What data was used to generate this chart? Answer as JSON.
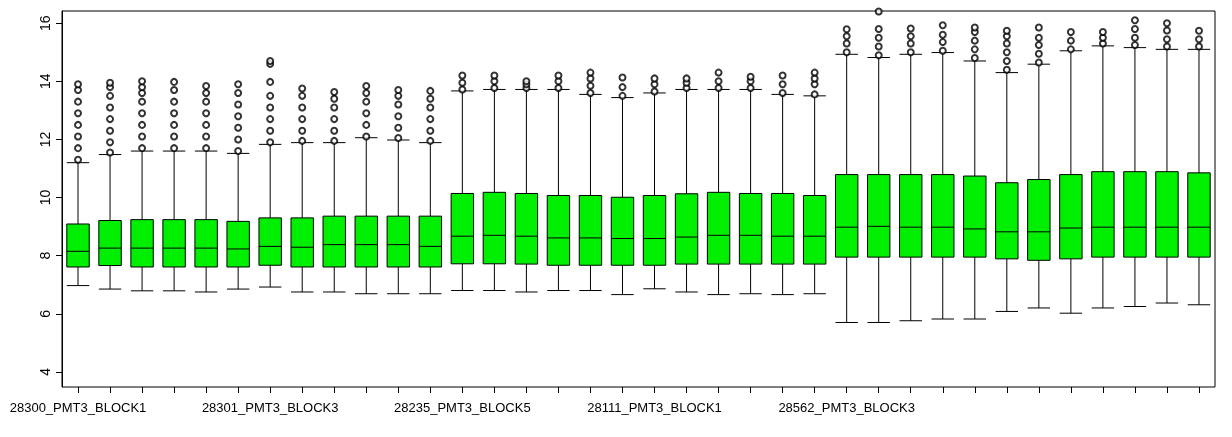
{
  "chart_data": {
    "type": "box",
    "color": "#00ee00",
    "categories": [
      "28300_PMT3_BLOCK1",
      null,
      null,
      null,
      null,
      null,
      "28301_PMT3_BLOCK3",
      null,
      null,
      null,
      null,
      null,
      "28235_PMT3_BLOCK5",
      null,
      null,
      null,
      null,
      null,
      "28111_PMT3_BLOCK1",
      null,
      null,
      null,
      null,
      null,
      "28562_PMT3_BLOCK3",
      null,
      null,
      null,
      null,
      null,
      null,
      null,
      null,
      null,
      null,
      null
    ],
    "ylim": [
      3.48,
      16.42
    ],
    "yticks": [
      4,
      6,
      8,
      10,
      12,
      14,
      16
    ],
    "boxes": [
      {
        "low": 6.97,
        "q1": 7.61,
        "median": 8.15,
        "q3": 9.09,
        "high": 11.2,
        "outliers": [
          11.3,
          11.7,
          12.1,
          12.5,
          12.9,
          13.3,
          13.7,
          13.9
        ]
      },
      {
        "low": 6.85,
        "q1": 7.66,
        "median": 8.26,
        "q3": 9.21,
        "high": 11.48,
        "outliers": [
          11.55,
          11.9,
          12.3,
          12.7,
          13.1,
          13.5,
          13.8,
          13.95
        ]
      },
      {
        "low": 6.79,
        "q1": 7.61,
        "median": 8.26,
        "q3": 9.24,
        "high": 11.6,
        "outliers": [
          11.7,
          12.1,
          12.5,
          12.9,
          13.3,
          13.6,
          13.8,
          14.0
        ]
      },
      {
        "low": 6.79,
        "q1": 7.61,
        "median": 8.26,
        "q3": 9.24,
        "high": 11.6,
        "outliers": [
          11.7,
          12.1,
          12.5,
          12.9,
          13.3,
          13.7,
          13.98
        ]
      },
      {
        "low": 6.75,
        "q1": 7.61,
        "median": 8.26,
        "q3": 9.24,
        "high": 11.6,
        "outliers": [
          11.7,
          12.1,
          12.5,
          12.9,
          13.3,
          13.6,
          13.84
        ]
      },
      {
        "low": 6.85,
        "q1": 7.61,
        "median": 8.23,
        "q3": 9.18,
        "high": 11.52,
        "outliers": [
          11.6,
          12.0,
          12.4,
          12.8,
          13.2,
          13.6,
          13.9
        ]
      },
      {
        "low": 6.92,
        "q1": 7.67,
        "median": 8.32,
        "q3": 9.3,
        "high": 11.83,
        "outliers": [
          11.9,
          12.3,
          12.7,
          13.1,
          13.5,
          13.98,
          14.6,
          14.7
        ]
      },
      {
        "low": 6.75,
        "q1": 7.61,
        "median": 8.29,
        "q3": 9.3,
        "high": 11.89,
        "outliers": [
          11.95,
          12.3,
          12.7,
          13.1,
          13.5,
          13.75
        ]
      },
      {
        "low": 6.75,
        "q1": 7.61,
        "median": 8.38,
        "q3": 9.36,
        "high": 11.89,
        "outliers": [
          11.95,
          12.3,
          12.7,
          13.1,
          13.4,
          13.63
        ]
      },
      {
        "low": 6.69,
        "q1": 7.61,
        "median": 8.38,
        "q3": 9.36,
        "high": 12.06,
        "outliers": [
          12.1,
          12.5,
          12.9,
          13.3,
          13.6,
          13.84
        ]
      },
      {
        "low": 6.69,
        "q1": 7.61,
        "median": 8.38,
        "q3": 9.36,
        "high": 11.98,
        "outliers": [
          12.05,
          12.4,
          12.8,
          13.2,
          13.5,
          13.7
        ]
      },
      {
        "low": 6.69,
        "q1": 7.61,
        "median": 8.32,
        "q3": 9.36,
        "high": 11.89,
        "outliers": [
          11.95,
          12.3,
          12.7,
          13.1,
          13.4,
          13.67
        ]
      },
      {
        "low": 6.8,
        "q1": 7.72,
        "median": 8.67,
        "q3": 10.14,
        "high": 13.67,
        "outliers": [
          13.72,
          13.95,
          14.2
        ]
      },
      {
        "low": 6.8,
        "q1": 7.72,
        "median": 8.7,
        "q3": 10.18,
        "high": 13.72,
        "outliers": [
          13.77,
          14.0,
          14.2
        ]
      },
      {
        "low": 6.75,
        "q1": 7.71,
        "median": 8.67,
        "q3": 10.14,
        "high": 13.72,
        "outliers": [
          13.77,
          13.9,
          14.0
        ]
      },
      {
        "low": 6.8,
        "q1": 7.67,
        "median": 8.61,
        "q3": 10.07,
        "high": 13.72,
        "outliers": [
          13.77,
          14.0,
          14.2
        ]
      },
      {
        "low": 6.8,
        "q1": 7.67,
        "median": 8.61,
        "q3": 10.07,
        "high": 13.55,
        "outliers": [
          13.6,
          13.85,
          14.1,
          14.3
        ]
      },
      {
        "low": 6.66,
        "q1": 7.67,
        "median": 8.59,
        "q3": 10.01,
        "high": 13.44,
        "outliers": [
          13.5,
          13.8,
          14.13
        ]
      },
      {
        "low": 6.86,
        "q1": 7.67,
        "median": 8.59,
        "q3": 10.07,
        "high": 13.6,
        "outliers": [
          13.65,
          13.9,
          14.1
        ]
      },
      {
        "low": 6.75,
        "q1": 7.71,
        "median": 8.64,
        "q3": 10.13,
        "high": 13.72,
        "outliers": [
          13.77,
          13.95,
          14.1
        ]
      },
      {
        "low": 6.66,
        "q1": 7.71,
        "median": 8.7,
        "q3": 10.18,
        "high": 13.72,
        "outliers": [
          13.77,
          14.0,
          14.3
        ]
      },
      {
        "low": 6.69,
        "q1": 7.71,
        "median": 8.7,
        "q3": 10.14,
        "high": 13.72,
        "outliers": [
          13.77,
          14.0,
          14.16
        ]
      },
      {
        "low": 6.66,
        "q1": 7.71,
        "median": 8.67,
        "q3": 10.14,
        "high": 13.55,
        "outliers": [
          13.6,
          13.9,
          14.2
        ]
      },
      {
        "low": 6.69,
        "q1": 7.71,
        "median": 8.67,
        "q3": 10.07,
        "high": 13.5,
        "outliers": [
          13.55,
          13.9,
          14.1,
          14.3
        ]
      },
      {
        "low": 5.7,
        "q1": 7.95,
        "median": 8.98,
        "q3": 10.79,
        "high": 14.93,
        "outliers": [
          15.0,
          15.3,
          15.55,
          15.79
        ]
      },
      {
        "low": 5.7,
        "q1": 7.95,
        "median": 9.01,
        "q3": 10.79,
        "high": 14.82,
        "outliers": [
          14.9,
          15.2,
          15.5,
          15.8,
          16.4
        ]
      },
      {
        "low": 5.76,
        "q1": 7.95,
        "median": 8.98,
        "q3": 10.79,
        "high": 14.93,
        "outliers": [
          15.0,
          15.3,
          15.55,
          15.82
        ]
      },
      {
        "low": 5.82,
        "q1": 7.95,
        "median": 8.98,
        "q3": 10.79,
        "high": 14.99,
        "outliers": [
          15.05,
          15.35,
          15.6,
          15.93
        ]
      },
      {
        "low": 5.82,
        "q1": 7.95,
        "median": 8.92,
        "q3": 10.74,
        "high": 14.7,
        "outliers": [
          14.8,
          15.1,
          15.4,
          15.7,
          15.85
        ]
      },
      {
        "low": 6.08,
        "q1": 7.89,
        "median": 8.82,
        "q3": 10.51,
        "high": 14.3,
        "outliers": [
          14.4,
          14.7,
          15.0,
          15.3,
          15.55,
          15.74
        ]
      },
      {
        "low": 6.2,
        "q1": 7.84,
        "median": 8.82,
        "q3": 10.62,
        "high": 14.59,
        "outliers": [
          14.65,
          14.95,
          15.25,
          15.5,
          15.85
        ]
      },
      {
        "low": 6.02,
        "q1": 7.89,
        "median": 8.95,
        "q3": 10.79,
        "high": 15.05,
        "outliers": [
          15.1,
          15.4,
          15.7
        ]
      },
      {
        "low": 6.2,
        "q1": 7.95,
        "median": 8.98,
        "q3": 10.89,
        "high": 15.22,
        "outliers": [
          15.3,
          15.5,
          15.7
        ]
      },
      {
        "low": 6.25,
        "q1": 7.95,
        "median": 8.98,
        "q3": 10.89,
        "high": 15.16,
        "outliers": [
          15.25,
          15.5,
          15.8,
          16.1
        ]
      },
      {
        "low": 6.37,
        "q1": 7.95,
        "median": 8.98,
        "q3": 10.89,
        "high": 15.1,
        "outliers": [
          15.2,
          15.45,
          15.75,
          16.0
        ]
      },
      {
        "low": 6.31,
        "q1": 7.95,
        "median": 8.98,
        "q3": 10.85,
        "high": 15.1,
        "outliers": [
          15.2,
          15.45,
          15.74
        ]
      }
    ]
  }
}
